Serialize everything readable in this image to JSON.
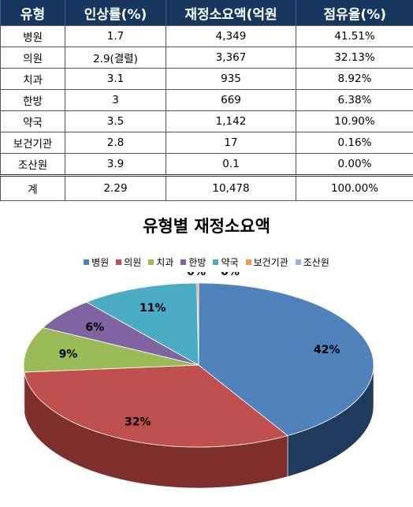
{
  "table": {
    "headers": [
      "유형",
      "인상률(%)",
      "재정소요액(억원",
      "점유율(%)"
    ],
    "rows": [
      [
        "병원",
        "1.7",
        "4,349",
        "41.51%"
      ],
      [
        "의원",
        "2.9(결렬)",
        "3,367",
        "32.13%"
      ],
      [
        "치과",
        "3.1",
        "935",
        "8.92%"
      ],
      [
        "한방",
        "3",
        "669",
        "6.38%"
      ],
      [
        "약국",
        "3.5",
        "1,142",
        "10.90%"
      ],
      [
        "보건기관",
        "2.8",
        "17",
        "0.16%"
      ],
      [
        "조산원",
        "3.9",
        "0.1",
        "0.00%"
      ]
    ],
    "total": [
      "계",
      "2.29",
      "10,478",
      "100.00%"
    ]
  },
  "chart_data": {
    "type": "pie",
    "title": "유형별 재정소요액",
    "legend_position": "top",
    "categories": [
      "병원",
      "의원",
      "치과",
      "한방",
      "약국",
      "보건기관",
      "조산원"
    ],
    "values": [
      4349,
      3367,
      935,
      669,
      1142,
      17,
      0.1
    ],
    "labels": [
      "42%",
      "32%",
      "9%",
      "6%",
      "11%",
      "0%",
      "0%"
    ],
    "colors": [
      "#4f81bd",
      "#c0504d",
      "#9bbb59",
      "#8064a2",
      "#4bacc6",
      "#f79646",
      "#95b3d7"
    ],
    "side_colors": [
      "#1f3a5c",
      "#7e2f2c",
      "#5f7a32",
      "#4d3b66",
      "#2b7285",
      "#a9612a",
      "#5f7fa8"
    ]
  }
}
